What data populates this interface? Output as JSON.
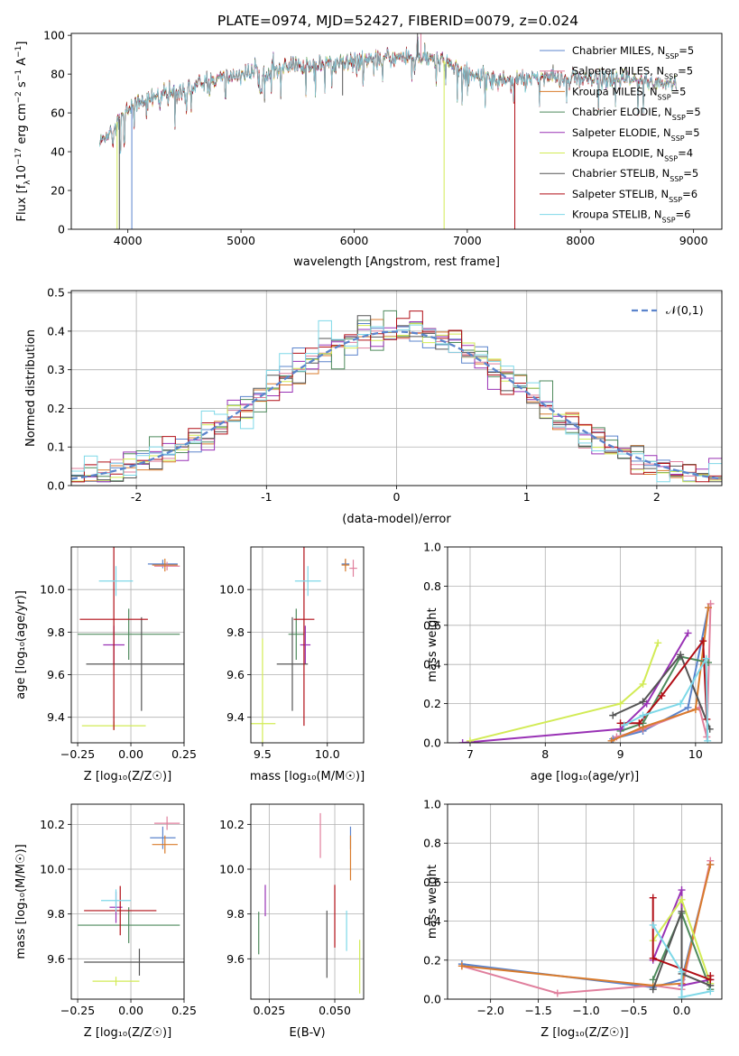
{
  "figure_title": "PLATE=0974, MJD=52427, FIBERID=0079, z=0.024",
  "models": [
    {
      "label": "Chabrier MILES, N_{SSP}=5",
      "color": "#5b84cc"
    },
    {
      "label": "Salpeter MILES, N_{SSP}=5",
      "color": "#e07f9d"
    },
    {
      "label": "Kroupa MILES, N_{SSP}=5",
      "color": "#d97b2c"
    },
    {
      "label": "Chabrier ELODIE, N_{SSP}=5",
      "color": "#4e8a5c"
    },
    {
      "label": "Salpeter ELODIE, N_{SSP}=5",
      "color": "#9932b5"
    },
    {
      "label": "Kroupa ELODIE, N_{SSP}=4",
      "color": "#d2eb55"
    },
    {
      "label": "Chabrier STELIB, N_{SSP}=5",
      "color": "#555555"
    },
    {
      "label": "Salpeter STELIB, N_{SSP}=6",
      "color": "#b10e16"
    },
    {
      "label": "Kroupa STELIB, N_{SSP}=6",
      "color": "#7ed8e8"
    }
  ],
  "chart_data": [
    {
      "id": "spectrum",
      "type": "line",
      "xlabel": "wavelength [Angstrom, rest frame]",
      "ylabel": "Flux [f_λ10^{-17} erg cm^{-2} s^{-1} A^{-1}]",
      "xlim": [
        3500,
        9250
      ],
      "ylim": [
        0,
        101
      ],
      "xticks": [
        4000,
        5000,
        6000,
        7000,
        8000,
        9000
      ],
      "yticks": [
        0,
        20,
        40,
        60,
        80,
        100
      ],
      "x_range": [
        3750,
        8850
      ],
      "continuum": [
        [
          3750,
          44
        ],
        [
          3900,
          55
        ],
        [
          4000,
          62
        ],
        [
          4100,
          66
        ],
        [
          4300,
          69
        ],
        [
          4500,
          72
        ],
        [
          4700,
          76
        ],
        [
          5000,
          80
        ],
        [
          5500,
          84
        ],
        [
          6000,
          87
        ],
        [
          6500,
          89
        ],
        [
          6800,
          87
        ],
        [
          7000,
          80
        ],
        [
          7300,
          77
        ],
        [
          7600,
          79
        ],
        [
          8000,
          77
        ],
        [
          8400,
          77
        ],
        [
          8850,
          75
        ]
      ],
      "grid": false
    },
    {
      "id": "residuals",
      "type": "histogram",
      "xlabel": "(data-model)/error",
      "ylabel": "Normed distribution",
      "xlim": [
        -2.5,
        2.5
      ],
      "ylim": [
        0,
        0.505
      ],
      "xticks": [
        -2,
        -1,
        0,
        1,
        2
      ],
      "yticks": [
        0.0,
        0.1,
        0.2,
        0.3,
        0.4,
        0.5
      ],
      "bin_width": 0.1,
      "reference_curve": {
        "label": "𝒩(0,1)",
        "type": "normal",
        "mean": 0,
        "sigma": 1,
        "color": "#5b84cc"
      },
      "grid": true
    },
    {
      "id": "age_vs_Z",
      "type": "errorbar",
      "xlabel": "Z [log₁₀(Z/Z☉)]",
      "ylabel": "age [log₁₀(age/yr)]",
      "xlim": [
        -0.28,
        0.25
      ],
      "ylim": [
        9.28,
        10.2
      ],
      "xticks": [
        -0.25,
        0.0,
        0.25
      ],
      "xticklabels": [
        "−0.25",
        "0.00",
        "0.25"
      ],
      "yticks": [
        9.4,
        9.6,
        9.8,
        10.0
      ],
      "grid": true,
      "points": [
        {
          "model": 0,
          "x": 0.15,
          "xerr": 0.07,
          "y": 10.12,
          "yerr": 0.02
        },
        {
          "model": 1,
          "x": 0.17,
          "xerr": 0.06,
          "y": 10.11,
          "yerr": 0.02
        },
        {
          "model": 2,
          "x": 0.16,
          "xerr": 0.06,
          "y": 10.115,
          "yerr": 0.03
        },
        {
          "model": 3,
          "x": -0.01,
          "xerr": 0.24,
          "y": 9.79,
          "yerr": 0.12
        },
        {
          "model": 4,
          "x": -0.08,
          "xerr": 0.05,
          "y": 9.74,
          "yerr": 0.09
        },
        {
          "model": 5,
          "x": -0.08,
          "xerr": 0.15,
          "y": 9.36,
          "yerr": 0.02
        },
        {
          "model": 6,
          "x": 0.05,
          "xerr": 0.26,
          "y": 9.65,
          "yerr": 0.22
        },
        {
          "model": 7,
          "x": -0.08,
          "xerr": 0.16,
          "y": 9.86,
          "yerr": 0.52
        },
        {
          "model": 8,
          "x": -0.07,
          "xerr": 0.08,
          "y": 10.04,
          "yerr": 0.07
        }
      ]
    },
    {
      "id": "age_vs_mass",
      "type": "errorbar",
      "xlabel": "mass [log₁₀(M/M☉)]",
      "ylabel": "",
      "xlim": [
        9.41,
        10.28
      ],
      "ylim": [
        9.28,
        10.2
      ],
      "xticks": [
        9.5,
        10.0
      ],
      "xticklabels": [
        "9.5",
        "10.0"
      ],
      "yticks": [
        9.4,
        9.6,
        9.8,
        10.0
      ],
      "grid": true,
      "points": [
        {
          "model": 0,
          "x": 10.14,
          "xerr": 0.03,
          "y": 10.12,
          "yerr": 0.02
        },
        {
          "model": 1,
          "x": 10.2,
          "xerr": 0.03,
          "y": 10.1,
          "yerr": 0.04
        },
        {
          "model": 2,
          "x": 10.14,
          "xerr": 0.03,
          "y": 10.115,
          "yerr": 0.03
        },
        {
          "model": 3,
          "x": 9.76,
          "xerr": 0.06,
          "y": 9.79,
          "yerr": 0.12
        },
        {
          "model": 4,
          "x": 9.83,
          "xerr": 0.04,
          "y": 9.74,
          "yerr": 0.09
        },
        {
          "model": 5,
          "x": 9.5,
          "xerr": 0.1,
          "y": 9.37,
          "yerr": 0.4
        },
        {
          "model": 6,
          "x": 9.73,
          "xerr": 0.12,
          "y": 9.65,
          "yerr": 0.22
        },
        {
          "model": 7,
          "x": 9.82,
          "xerr": 0.08,
          "y": 9.86,
          "yerr": 0.5
        },
        {
          "model": 8,
          "x": 9.85,
          "xerr": 0.1,
          "y": 10.04,
          "yerr": 0.07
        }
      ]
    },
    {
      "id": "massweight_vs_age",
      "type": "line",
      "xlabel": "age [log₁₀(age/yr)]",
      "ylabel": "mass weight",
      "xlim": [
        6.7,
        10.35
      ],
      "ylim": [
        0,
        1.0
      ],
      "xticks": [
        7,
        8,
        9,
        10
      ],
      "yticks": [
        0.0,
        0.2,
        0.4,
        0.6,
        0.8,
        1.0
      ],
      "grid": true,
      "series": [
        {
          "model": 0,
          "x": [
            8.9,
            9.3,
            9.9,
            10.17
          ],
          "y": [
            0.02,
            0.06,
            0.18,
            0.69
          ]
        },
        {
          "model": 1,
          "x": [
            8.95,
            9.3,
            10.05,
            10.15,
            10.2
          ],
          "y": [
            0.03,
            0.07,
            0.18,
            0.03,
            0.71
          ]
        },
        {
          "model": 2,
          "x": [
            8.88,
            9.3,
            10.0,
            10.17
          ],
          "y": [
            0.01,
            0.08,
            0.17,
            0.69
          ]
        },
        {
          "model": 3,
          "x": [
            9.0,
            9.3,
            9.8,
            10.17
          ],
          "y": [
            0.06,
            0.1,
            0.44,
            0.41
          ]
        },
        {
          "model": 4,
          "x": [
            6.9,
            9.0,
            9.35,
            9.9
          ],
          "y": [
            0.0,
            0.07,
            0.2,
            0.56
          ]
        },
        {
          "model": 5,
          "x": [
            7.0,
            9.0,
            9.3,
            9.5
          ],
          "y": [
            0.01,
            0.2,
            0.3,
            0.51
          ]
        },
        {
          "model": 6,
          "x": [
            8.9,
            9.3,
            9.8,
            10.19
          ],
          "y": [
            0.14,
            0.21,
            0.45,
            0.07
          ]
        },
        {
          "model": 7,
          "x": [
            9.0,
            9.25,
            9.55,
            10.1,
            10.15
          ],
          "y": [
            0.1,
            0.1,
            0.24,
            0.52,
            0.12
          ]
        },
        {
          "model": 8,
          "x": [
            9.05,
            9.3,
            9.8,
            10.14,
            10.16
          ],
          "y": [
            0.09,
            0.14,
            0.2,
            0.43,
            0.01
          ]
        }
      ]
    },
    {
      "id": "mass_vs_Z",
      "type": "errorbar",
      "xlabel": "Z [log₁₀(Z/Z☉)]",
      "ylabel": "mass [log₁₀(M/M☉)]",
      "xlim": [
        -0.28,
        0.25
      ],
      "ylim": [
        9.42,
        10.29
      ],
      "xticks": [
        -0.25,
        0.0,
        0.25
      ],
      "xticklabels": [
        "−0.25",
        "0.00",
        "0.25"
      ],
      "yticks": [
        9.6,
        9.8,
        10.0,
        10.2
      ],
      "grid": true,
      "points": [
        {
          "model": 0,
          "x": 0.15,
          "xerr": 0.06,
          "y": 10.14,
          "yerr": 0.05
        },
        {
          "model": 1,
          "x": 0.17,
          "xerr": 0.06,
          "y": 10.205,
          "yerr": 0.03
        },
        {
          "model": 2,
          "x": 0.16,
          "xerr": 0.06,
          "y": 10.11,
          "yerr": 0.04
        },
        {
          "model": 3,
          "x": -0.01,
          "xerr": 0.24,
          "y": 9.75,
          "yerr": 0.08
        },
        {
          "model": 4,
          "x": -0.07,
          "xerr": 0.03,
          "y": 9.83,
          "yerr": 0.07
        },
        {
          "model": 5,
          "x": -0.07,
          "xerr": 0.11,
          "y": 9.5,
          "yerr": 0.02
        },
        {
          "model": 6,
          "x": 0.04,
          "xerr": 0.26,
          "y": 9.585,
          "yerr": 0.06
        },
        {
          "model": 7,
          "x": -0.05,
          "xerr": 0.17,
          "y": 9.815,
          "yerr": 0.11
        },
        {
          "model": 8,
          "x": -0.07,
          "xerr": 0.07,
          "y": 9.86,
          "yerr": 0.05
        }
      ]
    },
    {
      "id": "mass_vs_ebv",
      "type": "errorbar",
      "xlabel": "E(B-V)",
      "ylabel": "",
      "xlim": [
        0.018,
        0.061
      ],
      "ylim": [
        9.42,
        10.29
      ],
      "xticks": [
        0.025,
        0.05
      ],
      "xticklabels": [
        "0.025",
        "0.050"
      ],
      "yticks": [
        9.6,
        9.8,
        10.0,
        10.2
      ],
      "grid": true,
      "points": [
        {
          "model": 0,
          "x": 0.056,
          "xerr": 0.0,
          "y": 10.14,
          "yerr": 0.05
        },
        {
          "model": 1,
          "x": 0.0445,
          "xerr": 0.0,
          "y": 10.15,
          "yerr": 0.1
        },
        {
          "model": 2,
          "x": 0.056,
          "xerr": 0.0,
          "y": 10.05,
          "yerr": 0.1
        },
        {
          "model": 3,
          "x": 0.021,
          "xerr": 0.0,
          "y": 9.715,
          "yerr": 0.095
        },
        {
          "model": 4,
          "x": 0.0235,
          "xerr": 0.0,
          "y": 9.86,
          "yerr": 0.07
        },
        {
          "model": 5,
          "x": 0.0595,
          "xerr": 0.0,
          "y": 9.565,
          "yerr": 0.12
        },
        {
          "model": 6,
          "x": 0.047,
          "xerr": 0.0,
          "y": 9.665,
          "yerr": 0.15
        },
        {
          "model": 7,
          "x": 0.05,
          "xerr": 0.0,
          "y": 9.79,
          "yerr": 0.14
        },
        {
          "model": 8,
          "x": 0.0545,
          "xerr": 0.0,
          "y": 9.725,
          "yerr": 0.09
        }
      ]
    },
    {
      "id": "massweight_vs_Z",
      "type": "line",
      "xlabel": "Z [log₁₀(Z/Z☉)]",
      "ylabel": "mass weight",
      "xlim": [
        -2.45,
        0.42
      ],
      "ylim": [
        0,
        1.0
      ],
      "xticks": [
        -2.0,
        -1.5,
        -1.0,
        -0.5,
        0.0
      ],
      "xticklabels": [
        "−2.0",
        "−1.5",
        "−1.0",
        "−0.5",
        "0.0"
      ],
      "yticks": [
        0.0,
        0.2,
        0.4,
        0.6,
        0.8,
        1.0
      ],
      "grid": true,
      "series": [
        {
          "model": 0,
          "x": [
            -2.3,
            -0.3,
            0.0,
            0.3
          ],
          "y": [
            0.18,
            0.06,
            0.1,
            0.69
          ]
        },
        {
          "model": 1,
          "x": [
            -2.3,
            -1.3,
            -0.3,
            0.0,
            0.3
          ],
          "y": [
            0.17,
            0.03,
            0.07,
            0.05,
            0.71
          ]
        },
        {
          "model": 2,
          "x": [
            -2.3,
            -0.3,
            0.0,
            0.3
          ],
          "y": [
            0.17,
            0.07,
            0.08,
            0.69
          ]
        },
        {
          "model": 3,
          "x": [
            -0.3,
            0.0,
            0.3
          ],
          "y": [
            0.1,
            0.44,
            0.05
          ]
        },
        {
          "model": 4,
          "x": [
            -0.3,
            0.0,
            0.0,
            0.3
          ],
          "y": [
            0.2,
            0.56,
            0.07,
            0.1
          ]
        },
        {
          "model": 5,
          "x": [
            -0.3,
            0.0,
            0.3
          ],
          "y": [
            0.3,
            0.51,
            0.08
          ]
        },
        {
          "model": 6,
          "x": [
            -0.3,
            0.0,
            0.0,
            0.3
          ],
          "y": [
            0.05,
            0.45,
            0.13,
            0.07
          ]
        },
        {
          "model": 7,
          "x": [
            -0.3,
            -0.3,
            0.3,
            0.3
          ],
          "y": [
            0.52,
            0.21,
            0.1,
            0.12
          ]
        },
        {
          "model": 8,
          "x": [
            -0.3,
            0.0,
            0.0,
            0.3
          ],
          "y": [
            0.38,
            0.14,
            0.01,
            0.04
          ]
        }
      ]
    }
  ]
}
